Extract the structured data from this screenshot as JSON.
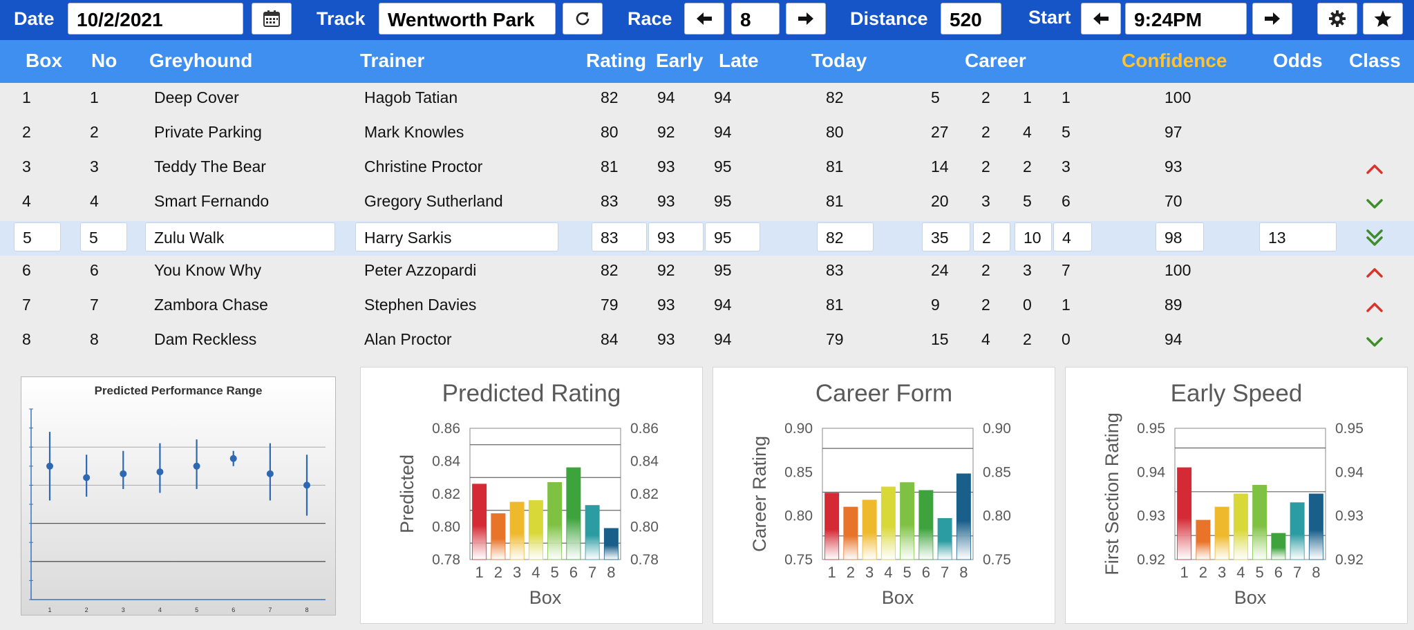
{
  "topbar": {
    "date_label": "Date",
    "date_value": "10/2/2021",
    "track_label": "Track",
    "track_value": "Wentworth Park",
    "race_label": "Race",
    "race_value": "8",
    "distance_label": "Distance",
    "distance_value": "520",
    "start_label": "Start",
    "start_value": "9:24PM",
    "icons": [
      "calendar-icon",
      "refresh-icon",
      "arrow-left-icon",
      "arrow-right-icon",
      "gear-icon",
      "star-icon"
    ]
  },
  "table": {
    "headers": {
      "box": "Box",
      "no": "No",
      "greyhound": "Greyhound",
      "trainer": "Trainer",
      "rating": "Rating",
      "early": "Early",
      "late": "Late",
      "today": "Today",
      "career": "Career",
      "confidence": "Confidence",
      "odds": "Odds",
      "class": "Class"
    },
    "selected_row": 4,
    "rows": [
      {
        "box": "1",
        "no": "1",
        "greyhound": "Deep Cover",
        "trainer": "Hagob Tatian",
        "rating": "82",
        "early": "94",
        "late": "94",
        "today": "82",
        "c1": "5",
        "c2": "2",
        "c3": "1",
        "c4": "1",
        "confidence": "100",
        "odds": "",
        "class": ""
      },
      {
        "box": "2",
        "no": "2",
        "greyhound": "Private Parking",
        "trainer": "Mark Knowles",
        "rating": "80",
        "early": "92",
        "late": "94",
        "today": "80",
        "c1": "27",
        "c2": "2",
        "c3": "4",
        "c4": "5",
        "confidence": "97",
        "odds": "",
        "class": ""
      },
      {
        "box": "3",
        "no": "3",
        "greyhound": "Teddy The Bear",
        "trainer": "Christine Proctor",
        "rating": "81",
        "early": "93",
        "late": "95",
        "today": "81",
        "c1": "14",
        "c2": "2",
        "c3": "2",
        "c4": "3",
        "confidence": "93",
        "odds": "",
        "class": "up"
      },
      {
        "box": "4",
        "no": "4",
        "greyhound": "Smart Fernando",
        "trainer": "Gregory Sutherland",
        "rating": "83",
        "early": "93",
        "late": "95",
        "today": "81",
        "c1": "20",
        "c2": "3",
        "c3": "5",
        "c4": "6",
        "confidence": "70",
        "odds": "",
        "class": "down"
      },
      {
        "box": "5",
        "no": "5",
        "greyhound": "Zulu Walk",
        "trainer": "Harry Sarkis",
        "rating": "83",
        "early": "93",
        "late": "95",
        "today": "82",
        "c1": "35",
        "c2": "2",
        "c3": "10",
        "c4": "4",
        "confidence": "98",
        "odds": "13",
        "class": "double-down"
      },
      {
        "box": "6",
        "no": "6",
        "greyhound": "You Know Why",
        "trainer": "Peter Azzopardi",
        "rating": "82",
        "early": "92",
        "late": "95",
        "today": "83",
        "c1": "24",
        "c2": "2",
        "c3": "3",
        "c4": "7",
        "confidence": "100",
        "odds": "",
        "class": "up"
      },
      {
        "box": "7",
        "no": "7",
        "greyhound": "Zambora Chase",
        "trainer": "Stephen Davies",
        "rating": "79",
        "early": "93",
        "late": "94",
        "today": "81",
        "c1": "9",
        "c2": "2",
        "c3": "0",
        "c4": "1",
        "confidence": "89",
        "odds": "",
        "class": "up"
      },
      {
        "box": "8",
        "no": "8",
        "greyhound": "Dam Reckless",
        "trainer": "Alan Proctor",
        "rating": "84",
        "early": "93",
        "late": "94",
        "today": "79",
        "c1": "15",
        "c2": "4",
        "c3": "2",
        "c4": "0",
        "confidence": "94",
        "odds": "",
        "class": "down"
      }
    ]
  },
  "colors": {
    "topbar_bg": "#1655c8",
    "header_bg": "#3f8ff0",
    "confidence_header": "#ffc233",
    "selected_row_bg": "#d9e6f8",
    "class_up": "#d9342b",
    "class_down": "#3f8c2a",
    "bars": [
      "#d42a35",
      "#e8742a",
      "#efb92d",
      "#d9d839",
      "#7fc243",
      "#3ea33c",
      "#2a9ca2",
      "#195f8a"
    ]
  },
  "chart_data": [
    {
      "type": "scatter",
      "title": "Predicted Performance Range",
      "x": [
        1,
        2,
        3,
        4,
        5,
        6,
        7,
        8
      ],
      "categories": [
        "1",
        "2",
        "3",
        "4",
        "5",
        "6",
        "7",
        "8"
      ],
      "y": [
        0.35,
        0.32,
        0.33,
        0.335,
        0.35,
        0.37,
        0.33,
        0.3
      ],
      "y_low": [
        0.26,
        0.27,
        0.29,
        0.28,
        0.29,
        0.35,
        0.26,
        0.22
      ],
      "y_high": [
        0.44,
        0.38,
        0.39,
        0.41,
        0.42,
        0.39,
        0.41,
        0.38
      ],
      "ylim": [
        0,
        0.5
      ],
      "grid": true
    },
    {
      "type": "bar",
      "title": "Predicted Rating",
      "xlabel": "Box",
      "ylabel": "Predicted",
      "categories": [
        "1",
        "2",
        "3",
        "4",
        "5",
        "6",
        "7",
        "8"
      ],
      "values": [
        0.826,
        0.808,
        0.815,
        0.816,
        0.827,
        0.836,
        0.813,
        0.799
      ],
      "ylim": [
        0.78,
        0.86
      ],
      "yticks": [
        "0.78",
        "0.80",
        "0.82",
        "0.84",
        "0.86"
      ],
      "grid_lines": [
        0.79,
        0.81,
        0.83,
        0.85
      ],
      "grid": true
    },
    {
      "type": "bar",
      "title": "Career Form",
      "xlabel": "Box",
      "ylabel": "Career Rating",
      "categories": [
        "1",
        "2",
        "3",
        "4",
        "5",
        "6",
        "7",
        "8"
      ],
      "values": [
        0.826,
        0.81,
        0.818,
        0.833,
        0.838,
        0.829,
        0.797,
        0.848
      ],
      "ylim": [
        0.75,
        0.9
      ],
      "yticks": [
        "0.75",
        "0.80",
        "0.85",
        "0.90"
      ],
      "grid_lines": [
        0.777,
        0.827,
        0.877
      ],
      "grid": true
    },
    {
      "type": "bar",
      "title": "Early Speed",
      "xlabel": "Box",
      "ylabel": "First Section Rating",
      "categories": [
        "1",
        "2",
        "3",
        "4",
        "5",
        "6",
        "7",
        "8"
      ],
      "values": [
        0.941,
        0.929,
        0.932,
        0.935,
        0.937,
        0.926,
        0.933,
        0.935
      ],
      "ylim": [
        0.92,
        0.95
      ],
      "yticks": [
        "0.92",
        "0.93",
        "0.94",
        "0.95"
      ],
      "grid_lines": [
        0.9255,
        0.9355,
        0.9455
      ],
      "grid": true
    }
  ]
}
